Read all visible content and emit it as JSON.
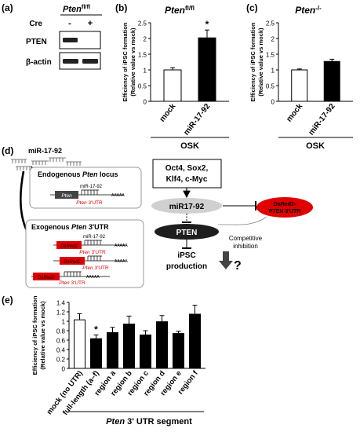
{
  "panels": {
    "a": {
      "label": "(a)",
      "genotype_base": "Pten",
      "genotype_sup": "fl/fl",
      "cre_label": "Cre",
      "lanes": [
        "-",
        "+"
      ],
      "rows": [
        "PTEN",
        "β-actin"
      ]
    },
    "b": {
      "label": "(b)",
      "title_base": "Pten",
      "title_sup": "fl/fl",
      "group": "OSK"
    },
    "c": {
      "label": "(c)",
      "title_base": "Pten",
      "title_sup": "-/-",
      "group": "OSK"
    },
    "d": {
      "label": "(d)",
      "mirna": "miR-17-92",
      "endogenous_title_a": "Endogenous ",
      "endogenous_title_b": "Pten",
      "endogenous_title_c": " locus",
      "exogenous_title_a": "Exogenous ",
      "exogenous_title_b": "Pten",
      "exogenous_title_c": " 3'UTR",
      "gene_pten": "Pten",
      "gene_dsred": "DsRed2",
      "utr_a": "Pten",
      "utr_b": " 3'UTR",
      "site_label": "miR-17-92",
      "polya": "AAAAA",
      "factors": [
        "Oct4, Sox2,",
        "Klf4, c-Myc"
      ],
      "center_mirna": "miR17-92",
      "pten_protein": "PTEN",
      "reporter": [
        "DsRed2-",
        "PTEN 3'UTR"
      ],
      "competitive": [
        "Competitive",
        "inhibition"
      ],
      "ipsc": [
        "iPSC",
        "production"
      ],
      "question": "?"
    },
    "e": {
      "label": "(e)",
      "group_a": "Pten",
      "group_b": " 3' UTR segment"
    }
  },
  "chart_data": [
    {
      "panel": "b",
      "type": "bar",
      "title": "Ptenfl/fl",
      "categories": [
        "mock",
        "miR-17-92"
      ],
      "values": [
        1.0,
        2.02
      ],
      "errors": [
        0.07,
        0.25
      ],
      "fills": [
        "#ffffff",
        "#000000"
      ],
      "significance": [
        "",
        "*"
      ],
      "ylabel": [
        "Efficiency of iPSC formation",
        "(Relative value vs mock)"
      ],
      "yticks": [
        "0",
        "0.5",
        "1",
        "1.5",
        "2",
        "2.5"
      ],
      "ylim": [
        0,
        2.5
      ],
      "xgroup": "OSK"
    },
    {
      "panel": "c",
      "type": "bar",
      "title": "Pten-/-",
      "categories": [
        "mock",
        "miR-17-92"
      ],
      "values": [
        1.0,
        1.27
      ],
      "errors": [
        0.03,
        0.07
      ],
      "fills": [
        "#ffffff",
        "#000000"
      ],
      "significance": [
        "",
        ""
      ],
      "ylabel": [
        "Efficiency of iPSC formation",
        "(Relative value vs mock)"
      ],
      "yticks": [
        "0",
        "0.5",
        "1",
        "1.5",
        "2",
        "2.5"
      ],
      "ylim": [
        0,
        2.5
      ],
      "xgroup": "OSK"
    },
    {
      "panel": "e",
      "type": "bar",
      "categories": [
        "mock (no UTR)",
        "full-length (a–f)",
        "region a",
        "region b",
        "region c",
        "region d",
        "region e",
        "region f"
      ],
      "values": [
        1.03,
        0.63,
        0.76,
        0.94,
        0.71,
        0.99,
        0.74,
        1.15
      ],
      "errors": [
        0.13,
        0.08,
        0.11,
        0.17,
        0.09,
        0.13,
        0.05,
        0.19
      ],
      "fills": [
        "#ffffff",
        "#000000",
        "#000000",
        "#000000",
        "#000000",
        "#000000",
        "#000000",
        "#000000"
      ],
      "significance": [
        "",
        "*",
        "",
        "",
        "",
        "",
        "",
        ""
      ],
      "ylabel": [
        "Efficiency of iPSC formation",
        "(Relative value vs mock)"
      ],
      "yticks": [
        "0",
        "0.2",
        "0.4",
        "0.6",
        "0.8",
        "1",
        "1.2",
        "1.4"
      ],
      "ylim": [
        0,
        1.4
      ],
      "xgroup": "Pten 3' UTR segment"
    }
  ]
}
